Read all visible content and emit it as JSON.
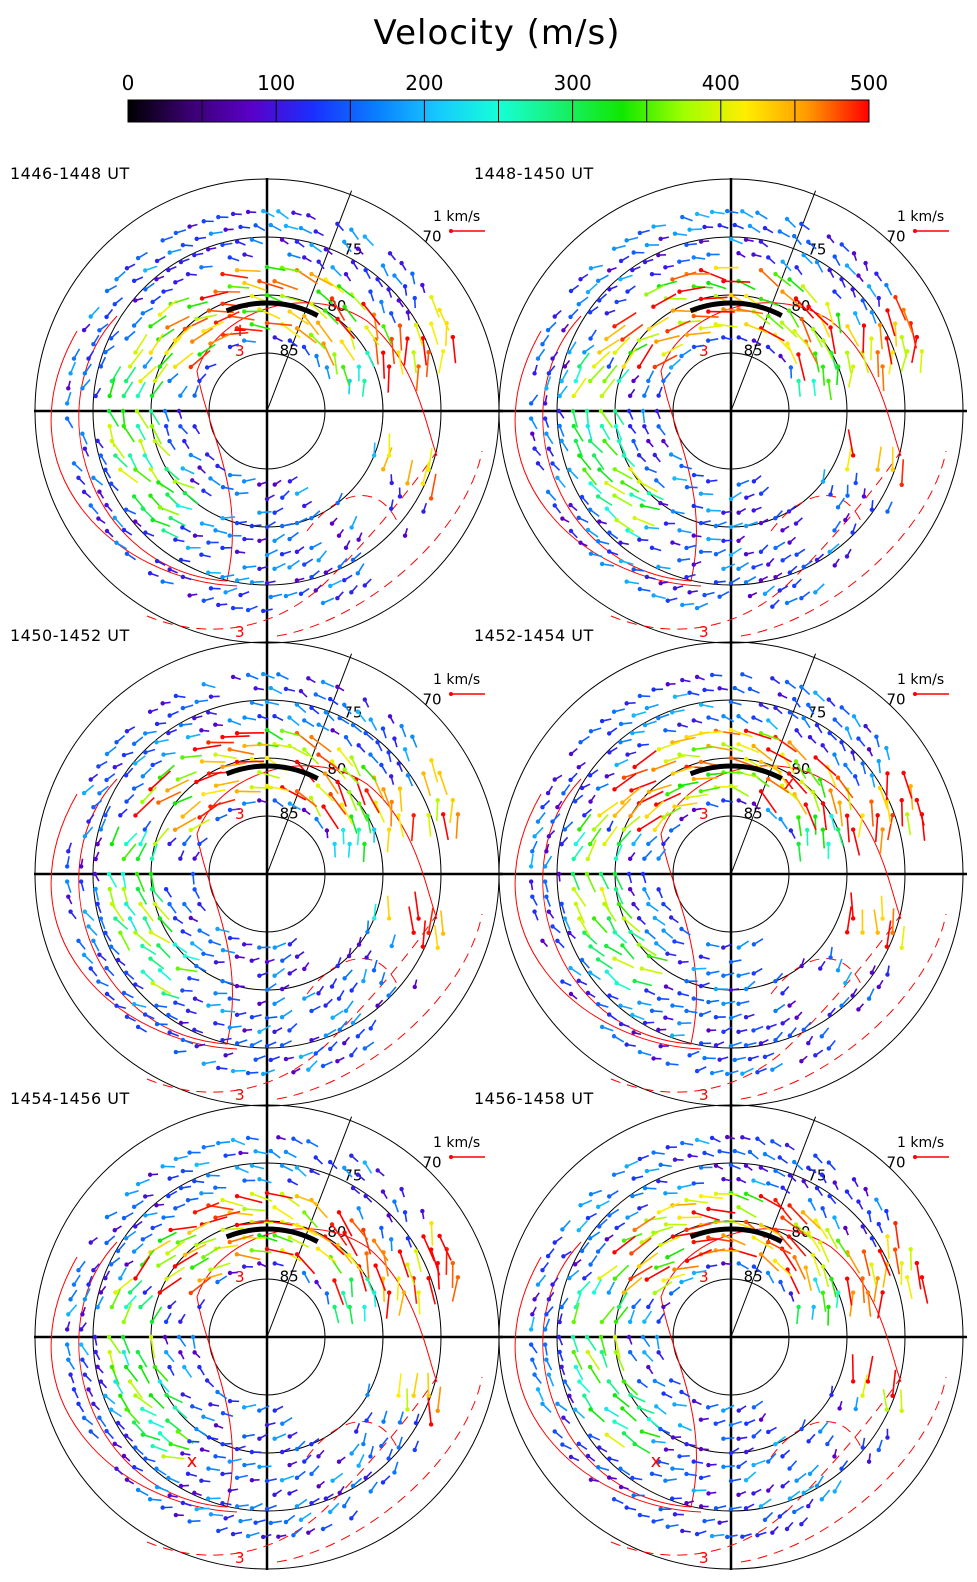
{
  "chart_data": {
    "type": "polar-vector-map",
    "colorbar": {
      "title": "Velocity (m/s)",
      "range": [
        0,
        500
      ],
      "ticks": [
        0,
        100,
        200,
        300,
        400,
        500
      ],
      "tick_labels": [
        "0",
        "100",
        "200",
        "300",
        "400",
        "500"
      ],
      "colors": [
        "#000000",
        "#3a0070",
        "#5a00c8",
        "#1a30ff",
        "#0a7cff",
        "#16c8ff",
        "#16ffd8",
        "#18f070",
        "#10e800",
        "#a0ff00",
        "#ffee00",
        "#ff9a00",
        "#ff0000"
      ]
    },
    "reference_vector": {
      "label": "1 km/s",
      "color": "#ff0000"
    },
    "latitude_circles": [
      70,
      75,
      80,
      85
    ],
    "latitude_labels": [
      "70",
      "75",
      "80",
      "85"
    ],
    "contour": {
      "label": "3",
      "color": "#ff0000"
    },
    "panels": [
      {
        "title": "1446-1448 UT",
        "marker": "+"
      },
      {
        "title": "1448-1450 UT",
        "marker": ""
      },
      {
        "title": "1450-1452 UT",
        "marker": ""
      },
      {
        "title": "1452-1454 UT",
        "marker": "x"
      },
      {
        "title": "1454-1456 UT",
        "marker": "x"
      },
      {
        "title": "1456-1458 UT",
        "marker": "x"
      }
    ]
  }
}
